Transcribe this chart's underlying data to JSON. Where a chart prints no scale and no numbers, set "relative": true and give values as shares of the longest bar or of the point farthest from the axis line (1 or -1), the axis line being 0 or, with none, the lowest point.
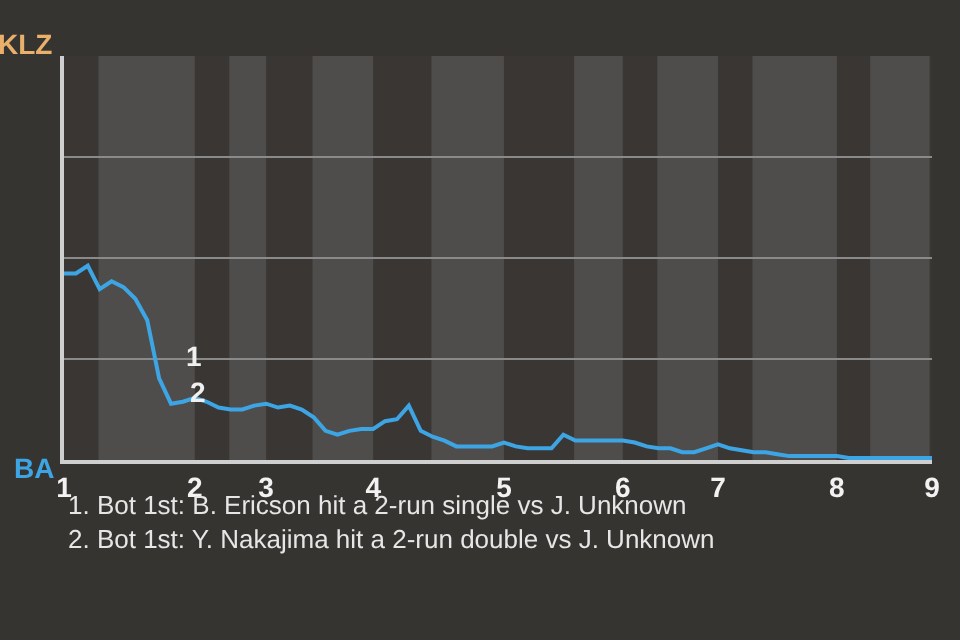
{
  "chart_data": {
    "type": "line",
    "relative": true,
    "categories": [
      "1",
      null,
      null,
      null,
      null,
      null,
      null,
      null,
      null,
      null,
      null,
      "2",
      null,
      null,
      null,
      null,
      null,
      "3",
      null,
      null,
      null,
      null,
      null,
      null,
      null,
      null,
      "4",
      null,
      null,
      null,
      null,
      null,
      null,
      null,
      null,
      null,
      null,
      "5",
      null,
      null,
      null,
      null,
      null,
      null,
      null,
      null,
      null,
      "6",
      null,
      null,
      null,
      null,
      null,
      null,
      null,
      "7",
      null,
      null,
      null,
      null,
      null,
      null,
      null,
      null,
      null,
      "8",
      null,
      null,
      null,
      null,
      null,
      null,
      null,
      "9"
    ],
    "series": [
      {
        "color": "#3ea5e4",
        "values": [
          0.96,
          0.96,
          1,
          0.88,
          0.92,
          0.89,
          0.83,
          0.72,
          0.42,
          0.29,
          0.3,
          0.32,
          0.3,
          0.27,
          0.26,
          0.26,
          0.28,
          0.29,
          0.27,
          0.28,
          0.26,
          0.22,
          0.15,
          0.13,
          0.15,
          0.16,
          0.16,
          0.2,
          0.21,
          0.28,
          0.15,
          0.12,
          0.1,
          0.07,
          0.07,
          0.07,
          0.07,
          0.09,
          0.07,
          0.06,
          0.06,
          0.06,
          0.13,
          0.1,
          0.1,
          0.1,
          0.1,
          0.1,
          0.09,
          0.07,
          0.06,
          0.06,
          0.04,
          0.04,
          0.06,
          0.08,
          0.06,
          0.05,
          0.04,
          0.04,
          0.03,
          0.02,
          0.02,
          0.02,
          0.02,
          0.02,
          0.01,
          0.01,
          0.01,
          0.01,
          0.01,
          0.01,
          0.01,
          0.01
        ]
      }
    ],
    "ref_lines": [
      {
        "axis": "y",
        "value": 0.52,
        "color": "#8a8a8a"
      },
      {
        "axis": "y",
        "value": 1.04,
        "color": "#8a8a8a"
      },
      {
        "axis": "y",
        "value": 1.56,
        "color": "#8a8a8a"
      }
    ],
    "marker": "none",
    "line_style": "solid",
    "annotations": [
      "KLZ",
      "BA",
      "1",
      "2",
      "1. Bot 1st: B. Ericson hit a 2-run single vs J. Unknown",
      "2. Bot 1st: Y. Nakajima hit a 2-run double vs J. Unknown"
    ]
  }
}
